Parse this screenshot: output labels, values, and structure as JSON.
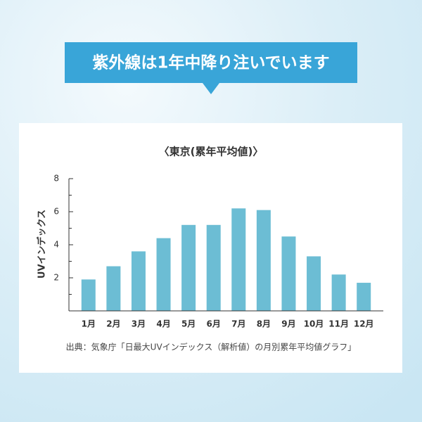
{
  "banner": "紫外線は1年中降り注いでいます",
  "chart_data": {
    "type": "bar",
    "title": "〈東京(累年平均値)〉",
    "y_label": "UVインデックス",
    "categories": [
      "1月",
      "2月",
      "3月",
      "4月",
      "5月",
      "6月",
      "7月",
      "8月",
      "9月",
      "10月",
      "11月",
      "12月"
    ],
    "values": [
      1.9,
      2.7,
      3.6,
      4.4,
      5.2,
      5.2,
      6.2,
      6.1,
      4.5,
      3.3,
      2.2,
      1.7
    ],
    "color": "#6cbdd4",
    "ylim": [
      0,
      8
    ],
    "yticks": [
      2,
      4,
      6,
      8
    ],
    "minor_yticks": [
      1,
      3,
      5,
      7
    ],
    "source": "出典：気象庁「日最大UVインデックス（解析値）の月別累年平均値グラフ」"
  }
}
